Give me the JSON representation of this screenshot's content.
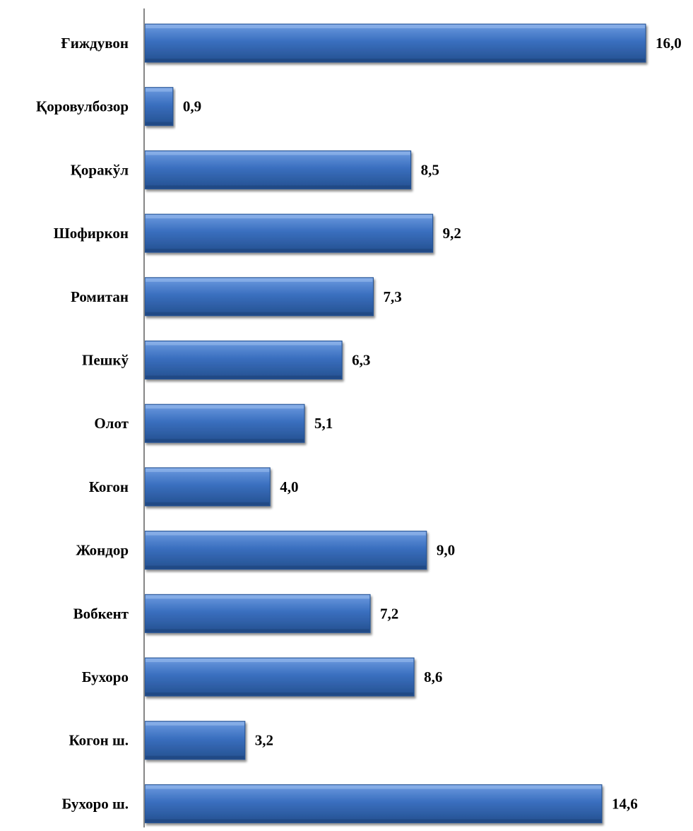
{
  "chart_data": {
    "type": "bar",
    "orientation": "horizontal",
    "categories": [
      "Ғиждувон",
      "Қоровулбозор",
      "Қоракўл",
      "Шофиркон",
      "Ромитан",
      "Пешкў",
      "Олот",
      "Когон",
      "Жондор",
      "Вобкент",
      "Бухоро",
      "Когон ш.",
      "Бухоро ш."
    ],
    "values": [
      16.0,
      0.9,
      8.5,
      9.2,
      7.3,
      6.3,
      5.1,
      4.0,
      9.0,
      7.2,
      8.6,
      3.2,
      14.6
    ],
    "value_labels": [
      "16,0",
      "0,9",
      "8,5",
      "9,2",
      "7,3",
      "6,3",
      "5,1",
      "4,0",
      "9,0",
      "7,2",
      "8,6",
      "3,2",
      "14,6"
    ],
    "xlim": [
      0,
      16.0
    ],
    "grid": false,
    "legend": "none",
    "bar_color": "#3a6fbf",
    "bar_color_light": "#6d9be0",
    "bar_color_dark": "#24508f",
    "axis_color": "#868686"
  }
}
